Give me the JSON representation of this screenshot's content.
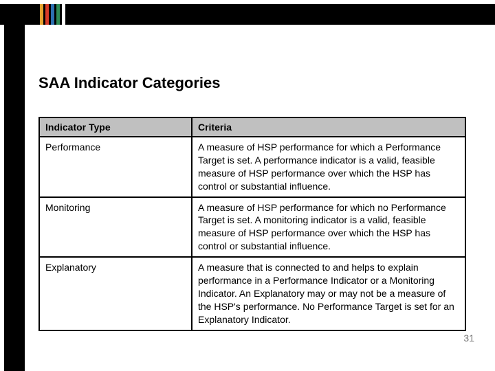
{
  "accent_stripes": [
    "#e4a02e",
    "#d83a28",
    "#2c6fb0",
    "#2e8b57",
    "#ffffff"
  ],
  "title": "SAA Indicator Categories",
  "page_number": "31",
  "table": {
    "columns": [
      "Indicator Type",
      "Criteria"
    ],
    "rows": [
      {
        "type": "Performance",
        "criteria": "A measure of HSP performance for which a Performance Target is set. A performance indicator is a valid, feasible measure of HSP performance over which the HSP has control or substantial influence."
      },
      {
        "type": "Monitoring",
        "criteria": "A measure of HSP performance for which no Performance Target is set. A monitoring indicator is a valid, feasible measure of HSP performance over which the HSP has control or substantial influence."
      },
      {
        "type": "Explanatory",
        "criteria": "A measure that is connected to and helps to explain performance in a Performance Indicator or a Monitoring Indicator. An Explanatory may or may not be a measure of the HSP's performance. No Performance Target is set for an Explanatory Indicator."
      }
    ]
  }
}
